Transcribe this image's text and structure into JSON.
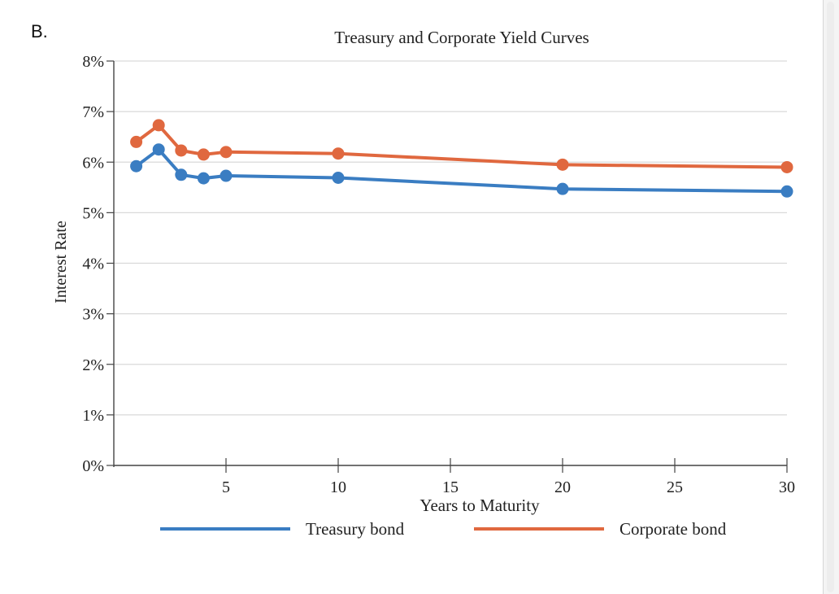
{
  "panel_label": "B.",
  "chart_data": {
    "type": "line",
    "title": "Treasury and Corporate Yield Curves",
    "xlabel": "Years to Maturity",
    "ylabel": "Interest Rate",
    "xlim": [
      0,
      30
    ],
    "ylim": [
      0,
      8
    ],
    "x_ticks": [
      5,
      10,
      15,
      20,
      25,
      30
    ],
    "y_ticks": [
      0,
      1,
      2,
      3,
      4,
      5,
      6,
      7,
      8
    ],
    "y_tick_labels": [
      "0%",
      "1%",
      "2%",
      "3%",
      "4%",
      "5%",
      "6%",
      "7%",
      "8%"
    ],
    "grid": true,
    "legend_position": "bottom",
    "series": [
      {
        "name": "Treasury bond",
        "color": "#3a7dc2",
        "x": [
          1,
          2,
          3,
          4,
          5,
          10,
          20,
          30
        ],
        "values": [
          5.92,
          6.25,
          5.75,
          5.68,
          5.73,
          5.69,
          5.47,
          5.42
        ]
      },
      {
        "name": "Corporate bond",
        "color": "#e0683f",
        "x": [
          1,
          2,
          3,
          4,
          5,
          10,
          20,
          30
        ],
        "values": [
          6.4,
          6.73,
          6.23,
          6.15,
          6.2,
          6.17,
          5.95,
          5.9
        ]
      }
    ]
  }
}
